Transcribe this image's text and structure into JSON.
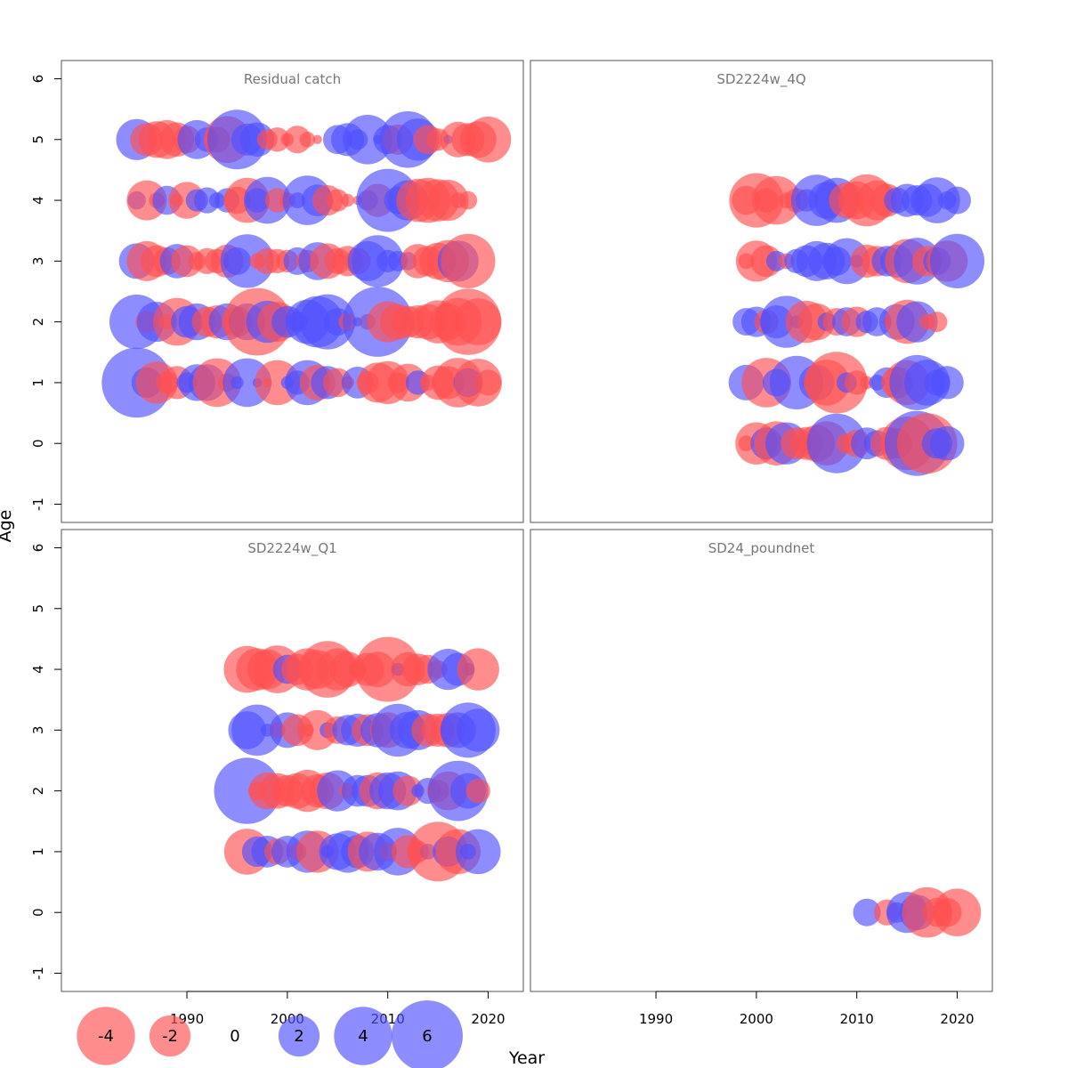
{
  "chart_data": {
    "type": "scatter",
    "subtype": "bubble-residual",
    "xlabel": "Year",
    "ylabel": "Age",
    "xlim": [
      1977.5,
      2023.5
    ],
    "ylim": [
      -1.3,
      6.3
    ],
    "x_ticks": [
      1990,
      2000,
      2010,
      2020
    ],
    "y_ticks": [
      -1,
      0,
      1,
      2,
      3,
      4,
      5,
      6
    ],
    "colors": {
      "negative": "#ff5050",
      "positive": "#5050ff"
    },
    "legend": {
      "placement": "bottom-left",
      "entries": [
        {
          "label": "-4",
          "value": -4
        },
        {
          "label": "-2",
          "value": -2
        },
        {
          "label": "0",
          "value": 0
        },
        {
          "label": "2",
          "value": 2
        },
        {
          "label": "4",
          "value": 4
        },
        {
          "label": "6",
          "value": 6
        }
      ]
    },
    "panels": [
      {
        "title": "Residual catch",
        "series": [
          {
            "age": 5,
            "start_year": 1985,
            "residuals": [
              2.0,
              -1.3,
              -1.6,
              -1.8,
              -1.4,
              -0.9,
              1.8,
              0.7,
              -0.8,
              -2.6,
              4.2,
              1.2,
              1.4,
              -0.5,
              -0.7,
              -0.2,
              -0.9,
              -0.3,
              -0.1,
              0.0,
              1.0,
              1.3,
              0.5,
              2.9,
              0.1,
              1.0,
              -1.1,
              3.8,
              2.1,
              -1.0,
              -0.6,
              0.1,
              -1.5,
              -1.3,
              -1.6,
              -2.5
            ]
          },
          {
            "age": 4,
            "start_year": 1985,
            "residuals": [
              0.4,
              -1.9,
              -0.3,
              1.0,
              -0.2,
              -1.6,
              0.6,
              0.8,
              0.3,
              0.7,
              -0.9,
              -2.4,
              0.7,
              2.6,
              -0.7,
              -0.3,
              0.3,
              2.9,
              1.2,
              -1.1,
              -0.6,
              -0.2,
              -0.1,
              0.5,
              -1.3,
              4.7,
              0.9,
              1.9,
              -2.2,
              -2.4,
              -2.1,
              -2.0,
              -0.3,
              -0.4
            ]
          },
          {
            "age": 3,
            "start_year": 1985,
            "residuals": [
              1.5,
              -1.9,
              -1.2,
              -0.9,
              1.4,
              -1.2,
              -0.4,
              -0.8,
              -0.7,
              -1.3,
              0.9,
              3.4,
              -0.3,
              -0.8,
              -0.7,
              -0.6,
              0.9,
              -0.6,
              1.7,
              -1.5,
              -0.8,
              -1.1,
              -0.8,
              1.9,
              3.2,
              0.6,
              0.5,
              0.4,
              -1.4,
              -1.1,
              -1.6,
              -2.1,
              2.0,
              -3.5
            ]
          },
          {
            "age": 2,
            "start_year": 1985,
            "residuals": [
              3.5,
              -0.6,
              1.9,
              -0.3,
              -2.7,
              1.2,
              1.6,
              -1.1,
              -1.3,
              1.6,
              -1.1,
              1.6,
              -5.4,
              2.1,
              -1.9,
              1.2,
              0.5,
              2.3,
              3.1,
              3.6,
              0.9,
              -0.4,
              0.1,
              -0.3,
              5.8,
              -2.0,
              -1.5,
              -1.2,
              -1.3,
              -1.5,
              -2.2,
              -1.6,
              -2.7,
              -5.2,
              -2.6
            ]
          },
          {
            "age": 1,
            "start_year": 1985,
            "residuals": [
              5.8,
              1.1,
              -2.1,
              -0.6,
              -1.3,
              0.5,
              1.6,
              1.6,
              -2.8,
              -0.4,
              0.2,
              2.8,
              0.1,
              -0.1,
              -2.4,
              0.2,
              0.7,
              2.4,
              -1.5,
              1.3,
              -1.0,
              -0.2,
              1.2,
              -0.6,
              -1.9,
              -2.2,
              -0.5,
              -1.7,
              0.7,
              -0.3,
              -1.4,
              -1.3,
              -2.9,
              1.0,
              -2.7,
              -0.8
            ]
          }
        ]
      },
      {
        "title": "SD2224w_4Q",
        "series": [
          {
            "age": 4,
            "start_year": 1999,
            "residuals": [
              -1.0,
              -3.5,
              -0.7,
              -2.8,
              -0.3,
              -0.7,
              0.6,
              3.1,
              1.6,
              2.4,
              -1.5,
              -1.7,
              -3.2,
              -1.9,
              -1.3,
              0.8,
              1.3,
              1.1,
              1.3,
              2.5,
              0.4,
              0.9
            ]
          },
          {
            "age": 3,
            "start_year": 1999,
            "residuals": [
              -0.3,
              -2.0,
              -1.2,
              0.5,
              -0.3,
              0.7,
              1.2,
              1.9,
              1.6,
              1.0,
              2.5,
              0.2,
              -1.3,
              -1.1,
              1.1,
              1.3,
              -2.3,
              2.6,
              -1.1,
              0.9,
              -2.0,
              3.5
            ]
          },
          {
            "age": 2,
            "start_year": 1999,
            "residuals": [
              0.9,
              1.1,
              -0.7,
              1.3,
              3.2,
              0.2,
              -2.1,
              -1.6,
              0.4,
              -0.9,
              1.0,
              -1.1,
              0.6,
              1.0,
              -0.1,
              1.5,
              -2.3,
              2.0,
              -0.3,
              -0.5
            ]
          },
          {
            "age": 1,
            "start_year": 1999,
            "residuals": [
              1.5,
              0.0,
              -2.9,
              0.9,
              0.0,
              3.4,
              -0.1,
              1.5,
              -2.5,
              -4.5,
              0.5,
              -0.7,
              -0.2,
              0.3,
              1.1,
              -1.2,
              -2.4,
              3.6,
              2.5,
              0.8,
              1.3
            ]
          },
          {
            "age": 0,
            "start_year": 1999,
            "residuals": [
              -0.3,
              -2.1,
              1.2,
              -2.3,
              2.1,
              -1.2,
              -1.3,
              -1.6,
              -2.3,
              4.2,
              -0.5,
              -0.9,
              1.2,
              0.8,
              -1.3,
              -1.1,
              -3.4,
              5.0,
              -4.3,
              1.1,
              1.4
            ]
          }
        ]
      },
      {
        "title": "SD2224w_Q1",
        "series": [
          {
            "age": 4,
            "start_year": 1996,
            "residuals": [
              -2.6,
              -2.1,
              -1.9,
              -2.7,
              1.0,
              -1.2,
              -2.1,
              -1.8,
              -3.8,
              -2.1,
              -1.5,
              -0.4,
              -1.3,
              -1.5,
              -5.0,
              0.2,
              -1.4,
              -1.2,
              -1.0,
              -0.4,
              2.0,
              1.3,
              0.2,
              -2.1
            ]
          },
          {
            "age": 3,
            "start_year": 1996,
            "residuals": [
              1.7,
              3.1,
              0.2,
              -0.3,
              1.5,
              -1.2,
              -0.2,
              -1.9,
              0.3,
              -0.9,
              1.1,
              1.3,
              -1.2,
              1.4,
              -1.5,
              3.3,
              1.6,
              1.9,
              -1.3,
              -1.3,
              -1.4,
              1.5,
              3.6,
              2.2
            ]
          },
          {
            "age": 2,
            "start_year": 1996,
            "residuals": [
              5.2,
              -0.4,
              -1.6,
              -1.5,
              -1.2,
              -1.5,
              -2.1,
              -1.3,
              -1.6,
              2.0,
              -0.3,
              1.2,
              1.2,
              -1.6,
              1.6,
              1.8,
              -1.1,
              0.2,
              0.8,
              -0.6,
              -1.8,
              4.3,
              1.5,
              -0.7
            ]
          },
          {
            "age": 1,
            "start_year": 1996,
            "residuals": [
              -2.5,
              1.1,
              1.2,
              -0.8,
              1.2,
              -0.4,
              2.1,
              -2.1,
              0.2,
              1.6,
              2.1,
              1.3,
              -1.9,
              1.7,
              -0.4,
              2.7,
              -1.3,
              -0.6,
              0.3,
              -4.2,
              1.1,
              -2.4,
              0.3,
              2.4
            ]
          }
        ]
      },
      {
        "title": "SD24_poundnet",
        "series": [
          {
            "age": 0,
            "start_year": 2011,
            "residuals": [
              0.9,
              0.0,
              -0.8,
              0.5,
              2.0,
              1.5,
              -3.0,
              -1.0,
              -1.0,
              -2.7
            ]
          }
        ]
      }
    ]
  }
}
